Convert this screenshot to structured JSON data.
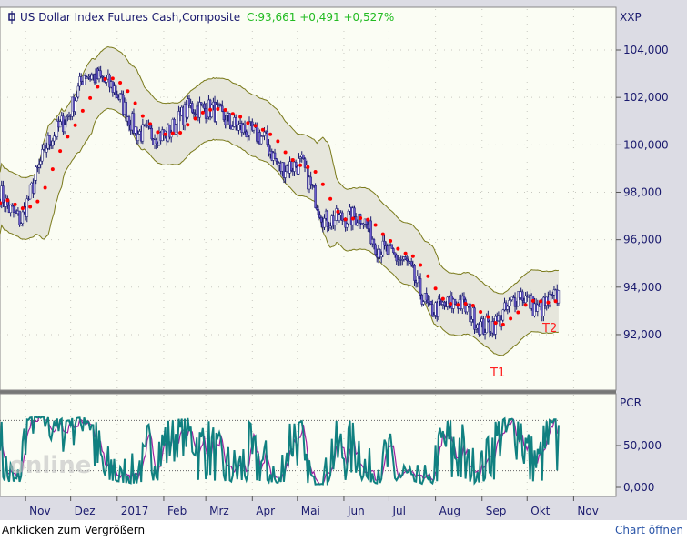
{
  "chart_data": {
    "type": "line",
    "title": "US Dollar Index Futures Cash,Composite",
    "quote": "C:93,661 +0,491 +0,527%",
    "main_axis_label": "XXP",
    "main_ylim": [
      90000,
      105500
    ],
    "main_ticks": [
      "92,000",
      "94,000",
      "96,000",
      "98,000",
      "100,000",
      "102,000",
      "104,000"
    ],
    "main_tick_values": [
      92000,
      94000,
      96000,
      98000,
      100000,
      102000,
      104000
    ],
    "lower_axis_label": "PCR",
    "lower_ticks": [
      "0,000",
      "50,000"
    ],
    "lower_tick_values": [
      0,
      50
    ],
    "lower_ylim": [
      -5,
      95
    ],
    "lower_levels": [
      80,
      20
    ],
    "x_labels": [
      "Nov",
      "Dez",
      "2017",
      "Feb",
      "Mrz",
      "Apr",
      "Mai",
      "Jun",
      "Jul",
      "Aug",
      "Sep",
      "Okt",
      "Nov"
    ],
    "x_label_days": [
      31,
      61,
      92,
      123,
      151,
      182,
      212,
      243,
      273,
      304,
      335,
      365,
      396
    ],
    "price_keypoints_day_close": [
      [
        14,
        98000
      ],
      [
        20,
        97300
      ],
      [
        28,
        96800
      ],
      [
        45,
        100000
      ],
      [
        60,
        101300
      ],
      [
        70,
        103000
      ],
      [
        80,
        102800
      ],
      [
        90,
        102400
      ],
      [
        105,
        100500
      ],
      [
        125,
        100400
      ],
      [
        140,
        101600
      ],
      [
        155,
        101500
      ],
      [
        170,
        100800
      ],
      [
        190,
        100300
      ],
      [
        200,
        99000
      ],
      [
        215,
        99200
      ],
      [
        230,
        96800
      ],
      [
        255,
        97000
      ],
      [
        265,
        95700
      ],
      [
        285,
        95000
      ],
      [
        300,
        93000
      ],
      [
        320,
        93400
      ],
      [
        335,
        92300
      ],
      [
        345,
        92500
      ],
      [
        360,
        93800
      ],
      [
        372,
        93000
      ],
      [
        386,
        93661
      ]
    ],
    "annotations": [
      "T1",
      "T2"
    ],
    "series": [
      "Price (OHLC)",
      "Bollinger upper",
      "Bollinger lower",
      "Moving average",
      "PCR",
      "PCR signal"
    ],
    "colors": {
      "bars": "#1a1a6e",
      "band": "#7a7a1a",
      "band_fill": "#e6e6dc",
      "ma": "#ff0000",
      "pcr": "#108080",
      "signal": "#a020a0",
      "annot": "#ff2020"
    },
    "watermark": "TheScreener / Tradesignal Online"
  },
  "footer": {
    "enlarge": "Anklicken zum Vergrößern",
    "open": "Chart öffnen"
  }
}
